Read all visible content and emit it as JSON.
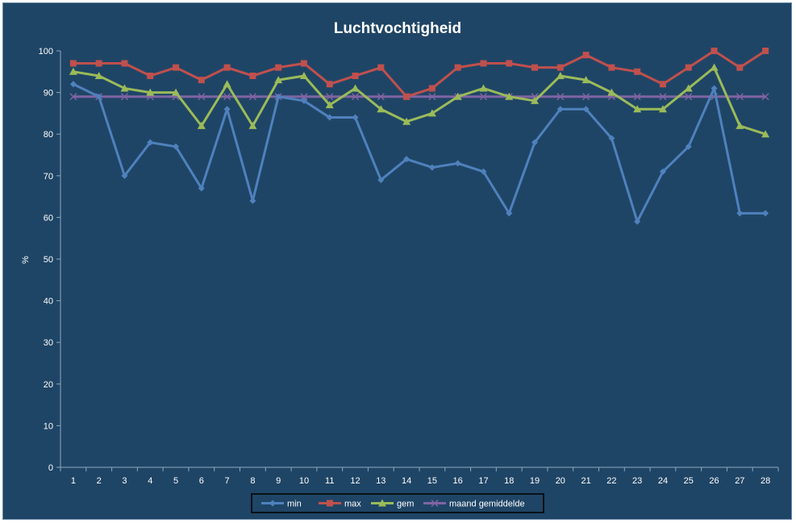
{
  "chart_data": {
    "type": "line",
    "title": "Luchtvochtigheid",
    "xlabel": "",
    "ylabel": "%",
    "ylim": [
      0,
      100
    ],
    "yticks": [
      0,
      10,
      20,
      30,
      40,
      50,
      60,
      70,
      80,
      90,
      100
    ],
    "categories": [
      "1",
      "2",
      "3",
      "4",
      "5",
      "6",
      "7",
      "8",
      "9",
      "10",
      "11",
      "12",
      "13",
      "14",
      "15",
      "16",
      "17",
      "18",
      "19",
      "20",
      "21",
      "22",
      "23",
      "24",
      "25",
      "26",
      "27",
      "28"
    ],
    "grid": false,
    "legend_position": "bottom",
    "series": [
      {
        "name": "min",
        "color": "#4f81bd",
        "marker": "diamond",
        "values": [
          92,
          89,
          70,
          78,
          77,
          67,
          86,
          64,
          89,
          88,
          84,
          84,
          69,
          74,
          72,
          73,
          71,
          61,
          78,
          86,
          86,
          79,
          59,
          71,
          77,
          91,
          61,
          61
        ]
      },
      {
        "name": "max",
        "color": "#c0504d",
        "marker": "square",
        "values": [
          97,
          97,
          97,
          94,
          96,
          93,
          96,
          94,
          96,
          97,
          92,
          94,
          96,
          89,
          91,
          96,
          97,
          97,
          96,
          96,
          99,
          96,
          95,
          92,
          96,
          100,
          96,
          100
        ]
      },
      {
        "name": "gem",
        "color": "#9bbb59",
        "marker": "triangle",
        "values": [
          95,
          94,
          91,
          90,
          90,
          82,
          92,
          82,
          93,
          94,
          87,
          91,
          86,
          83,
          85,
          89,
          91,
          89,
          88,
          94,
          93,
          90,
          86,
          86,
          91,
          96,
          82,
          80
        ]
      },
      {
        "name": "maand gemiddelde",
        "color": "#8064a2",
        "marker": "x",
        "values": [
          89,
          89,
          89,
          89,
          89,
          89,
          89,
          89,
          89,
          89,
          89,
          89,
          89,
          89,
          89,
          89,
          89,
          89,
          89,
          89,
          89,
          89,
          89,
          89,
          89,
          89,
          89,
          89
        ]
      }
    ]
  }
}
